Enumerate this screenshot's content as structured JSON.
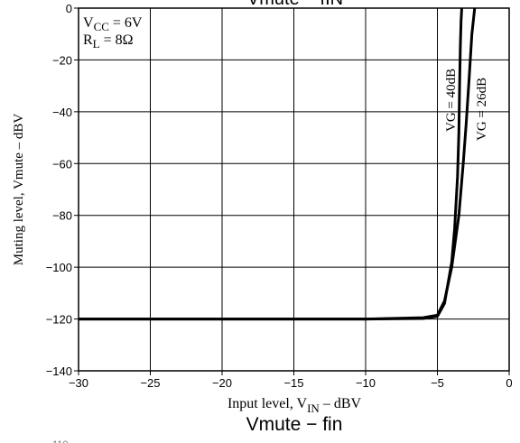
{
  "chart_data": {
    "type": "line",
    "title": "Vmute − fIN",
    "bottom_title": "Vmute − fin",
    "footer_fragment": "110",
    "xlabel_main": "Input level, V",
    "xlabel_sub": "IN",
    "xlabel_suffix": " –  dBV",
    "ylabel": "Muting level, Vmute  –  dBV",
    "xlim": [
      -30,
      0
    ],
    "ylim": [
      -140,
      0
    ],
    "x_ticks": [
      -30,
      -25,
      -20,
      -15,
      -10,
      -5,
      0
    ],
    "y_ticks": [
      0,
      -20,
      -40,
      -60,
      -80,
      -100,
      -120,
      -140
    ],
    "x_tick_labels": [
      "−30",
      "−25",
      "−20",
      "−15",
      "−10",
      "−5",
      "0"
    ],
    "y_tick_labels": [
      "0",
      "−20",
      "−40",
      "−60",
      "−80",
      "−100",
      "−120",
      "−140"
    ],
    "grid": true,
    "conditions": [
      {
        "main": "V",
        "sub": "CC",
        "rest": " = 6V"
      },
      {
        "main": "R",
        "sub": "L",
        "rest": " = 8Ω"
      }
    ],
    "series": [
      {
        "name": "VG = 40dB",
        "x": [
          -30,
          -20,
          -10,
          -6,
          -5,
          -4.5,
          -4,
          -3.8,
          -3.6,
          -3.5,
          -3.45,
          -3.4,
          -3.35,
          -3.3
        ],
        "y": [
          -120,
          -120,
          -120,
          -119.8,
          -119,
          -114,
          -98,
          -85,
          -65,
          -48,
          -30,
          -15,
          -5,
          0
        ]
      },
      {
        "name": "VG = 26dB",
        "x": [
          -30,
          -20,
          -10,
          -6,
          -5,
          -4.5,
          -4,
          -3.5,
          -3.2,
          -3.0,
          -2.8,
          -2.6,
          -2.4
        ],
        "y": [
          -120,
          -120,
          -120,
          -119.5,
          -118.5,
          -113,
          -100,
          -80,
          -60,
          -45,
          -28,
          -10,
          0
        ]
      }
    ]
  }
}
